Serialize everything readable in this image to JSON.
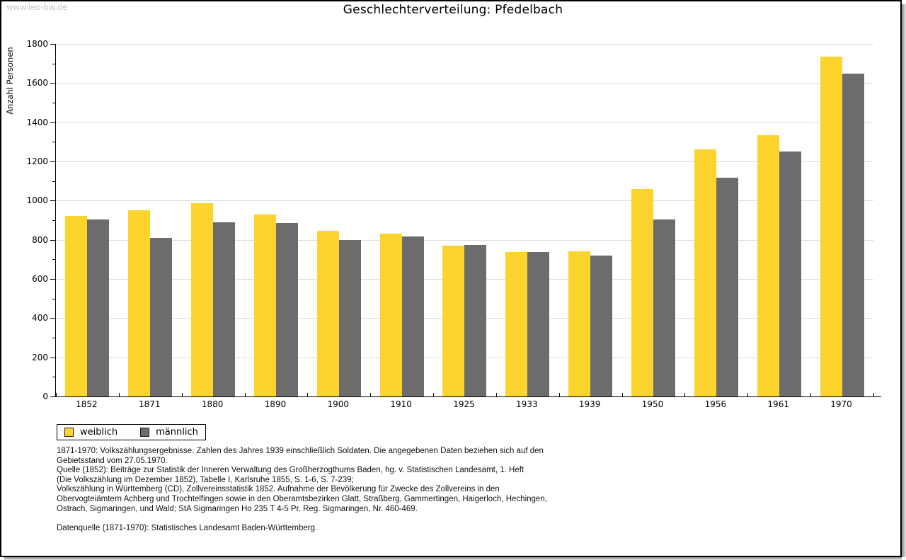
{
  "page": {
    "watermark": "www.leo-bw.de",
    "title": "Geschlechterverteilung: Pfedelbach"
  },
  "chart_data": {
    "type": "bar",
    "title": "Geschlechterverteilung: Pfedelbach",
    "xlabel": "",
    "ylabel": "Anzahl Personen",
    "ylim": [
      0,
      1800
    ],
    "ytick_step": 200,
    "ytick_minor_step": 100,
    "grid": true,
    "legend_position": "bottom-left",
    "categories": [
      "1852",
      "1871",
      "1880",
      "1890",
      "1900",
      "1910",
      "1925",
      "1933",
      "1939",
      "1950",
      "1956",
      "1961",
      "1970"
    ],
    "series": [
      {
        "name": "weiblich",
        "color": "#FCD42D",
        "values": [
          920,
          950,
          987,
          929,
          846,
          830,
          771,
          736,
          741,
          1058,
          1263,
          1332,
          1736
        ]
      },
      {
        "name": "männlich",
        "color": "#6C6C6C",
        "values": [
          902,
          809,
          888,
          886,
          798,
          816,
          775,
          737,
          718,
          903,
          1116,
          1250,
          1650
        ]
      }
    ]
  },
  "footer": {
    "lines": [
      "1871-1970: Volkszählungsergebnisse. Zahlen des Jahres 1939 einschließlich Soldaten. Die angegebenen Daten beziehen sich auf den",
      "Gebietsstand vom 27.05.1970.",
      "Quelle (1852): Beiträge zur Statistik der Inneren Verwaltung des Großherzogthums Baden, hg. v. Statistischen Landesamt, 1. Heft",
      "(Die Volkszählung im Dezember 1852), Tabelle I, Karlsruhe 1855, S. 1-6, S. 7-239;",
      "Volkszählung in Württemberg (CD), Zollvereinsstatistik 1852. Aufnahme der Bevölkerung für Zwecke des Zollvereins in den",
      "Obervogteiämtern Achberg und Trochtelfingen sowie in den Oberamtsbezirken Glatt, Straßberg, Gammertingen, Haigerloch, Hechingen,",
      "Ostrach, Sigmaringen, und Wald; StA Sigmaringen Ho 235 T 4-5 Pr. Reg. Sigmaringen, Nr. 460-469."
    ],
    "datasource": "Datenquelle (1871-1970): Statistisches Landesamt Baden-Württemberg."
  },
  "colors": {
    "weiblich": "#FCD42D",
    "männlich": "#6C6C6C",
    "gridline": "#DCDCDC",
    "axis": "#000000",
    "watermark": "#C8C8C8"
  }
}
